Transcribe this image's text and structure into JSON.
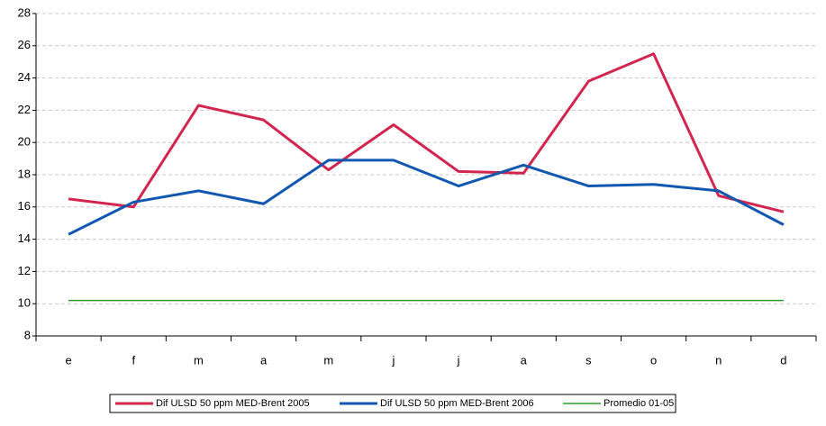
{
  "chart_data": {
    "type": "line",
    "categories": [
      "e",
      "f",
      "m",
      "a",
      "m",
      "j",
      "j",
      "a",
      "s",
      "o",
      "n",
      "d"
    ],
    "series": [
      {
        "name": "Dif ULSD 50 ppm MED-Brent 2005",
        "color": "#d0264f",
        "values": [
          16.5,
          16.0,
          22.3,
          21.4,
          18.3,
          21.1,
          18.2,
          18.1,
          23.8,
          25.5,
          16.7,
          15.7
        ]
      },
      {
        "name": "Dif ULSD 50 ppm MED-Brent 2006",
        "color": "#1257b0",
        "values": [
          14.3,
          16.3,
          17.0,
          16.2,
          18.9,
          18.9,
          17.3,
          18.6,
          17.3,
          17.4,
          17.0,
          14.9
        ]
      },
      {
        "name": "Promedio 01-05",
        "color": "#2e9a2e",
        "values": [
          10.2,
          10.2,
          10.2,
          10.2,
          10.2,
          10.2,
          10.2,
          10.2,
          10.2,
          10.2,
          10.2,
          10.2
        ]
      }
    ],
    "ylim": [
      8,
      28
    ],
    "yticks": [
      8,
      10,
      12,
      14,
      16,
      18,
      20,
      22,
      24,
      26,
      28
    ],
    "grid": true
  }
}
